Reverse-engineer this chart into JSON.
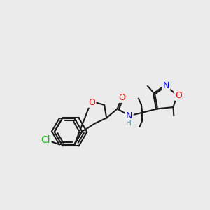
{
  "bg_color": "#ebebeb",
  "bond_color": "#1a1a1a",
  "bond_width": 1.5,
  "atom_colors": {
    "O": "#ff0000",
    "N": "#0000ff",
    "Cl": "#00cc00",
    "H": "#4a9a9a",
    "C": "#1a1a1a"
  },
  "font_size": 9,
  "font_size_small": 7.5
}
